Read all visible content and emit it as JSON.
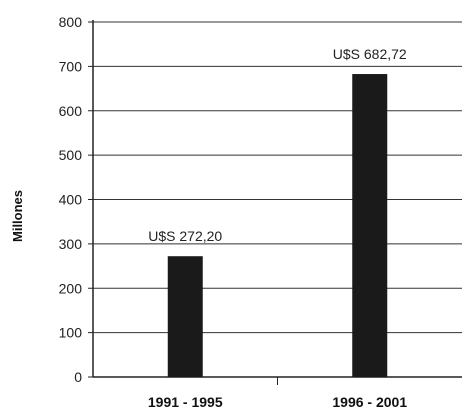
{
  "chart_data": {
    "type": "bar",
    "title": "",
    "xlabel": "",
    "ylabel": "Millones",
    "ylim": [
      0,
      800
    ],
    "yticks": [
      0,
      100,
      200,
      300,
      400,
      500,
      600,
      700,
      800
    ],
    "grid": true,
    "categories": [
      "1991 - 1995",
      "1996 - 2001"
    ],
    "values": [
      272.2,
      682.72
    ],
    "data_labels": [
      "U$S 272,20",
      "U$S 682,72"
    ],
    "colors": {
      "bar": "#1a1a1a",
      "grid": "#333333",
      "axis": "#222222"
    }
  }
}
